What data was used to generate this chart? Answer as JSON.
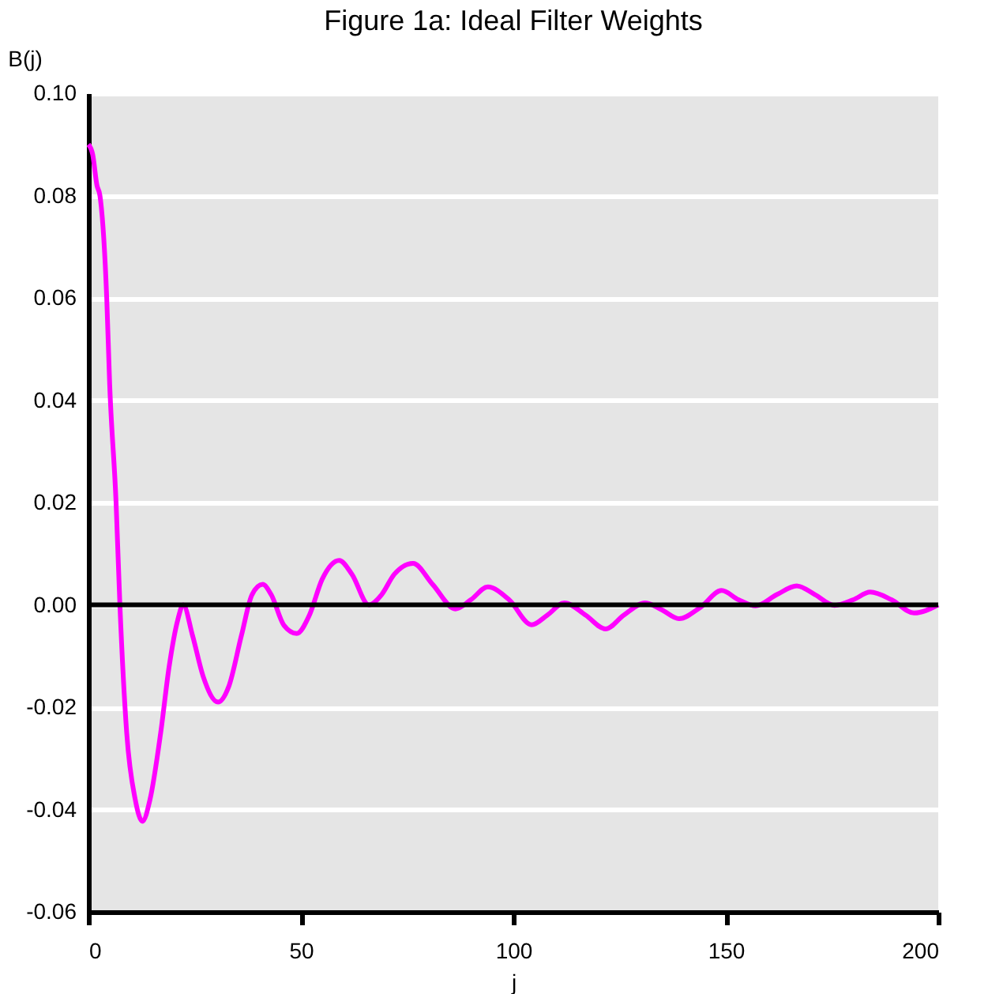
{
  "chart_data": {
    "type": "line",
    "title": "Figure 1a: Ideal Filter Weights",
    "xlabel": "j",
    "ylabel": "B(j)",
    "x": [
      0,
      1,
      2,
      2.7,
      4.3,
      5,
      6.5,
      7.4,
      9,
      11,
      12.7,
      14.5,
      17,
      19,
      21,
      22.3,
      24.5,
      27,
      30.5,
      33,
      36,
      38.5,
      41,
      43,
      46,
      49,
      52,
      55,
      59,
      62,
      66,
      69,
      72,
      76.4,
      81,
      86.4,
      90,
      94,
      99,
      104.3,
      108,
      112,
      117,
      121.7,
      126,
      131,
      135,
      139,
      144,
      149,
      153,
      157,
      162,
      166.7,
      171,
      175.6,
      180,
      184,
      189,
      194.3,
      200
    ],
    "series": [
      {
        "color": "#ff00ff",
        "values": [
          0.09,
          0.088,
          0.082,
          0.08,
          0.06,
          0.043,
          0.02,
          0.0,
          -0.025,
          -0.038,
          -0.0423,
          -0.038,
          -0.025,
          -0.012,
          -0.003,
          0.0,
          -0.006,
          -0.014,
          -0.019,
          -0.016,
          -0.006,
          0.002,
          0.004,
          0.002,
          -0.004,
          -0.0056,
          -0.002,
          0.005,
          0.0087,
          0.006,
          0.0,
          0.002,
          0.006,
          0.0081,
          0.004,
          -0.0008,
          0.001,
          0.0035,
          0.001,
          -0.0039,
          -0.002,
          0.0004,
          -0.002,
          -0.0047,
          -0.002,
          0.0004,
          -0.001,
          -0.0027,
          -0.0005,
          0.0028,
          0.001,
          -0.0002,
          0.002,
          0.0037,
          0.002,
          -0.0001,
          0.001,
          0.0025,
          0.001,
          -0.0016,
          0.0
        ]
      }
    ],
    "xlim": [
      0,
      200
    ],
    "xticks": [
      0,
      50,
      100,
      150,
      200
    ],
    "ylim": [
      -0.06,
      0.1
    ],
    "yticks": [
      {
        "value": -0.06,
        "label": "-0.06"
      },
      {
        "value": -0.04,
        "label": "-0.04"
      },
      {
        "value": -0.02,
        "label": "-0.02"
      },
      {
        "value": 0,
        "label": "0.00"
      },
      {
        "value": 0.02,
        "label": "0.02"
      },
      {
        "value": 0.04,
        "label": "0.04"
      },
      {
        "value": 0.06,
        "label": "0.06"
      },
      {
        "value": 0.08,
        "label": "0.08"
      },
      {
        "value": 0.1,
        "label": "0.10"
      }
    ],
    "grid": "y",
    "ref_lines": [
      {
        "axis": "y",
        "value": 0,
        "color": "#000000"
      }
    ],
    "line_style": "solid"
  }
}
